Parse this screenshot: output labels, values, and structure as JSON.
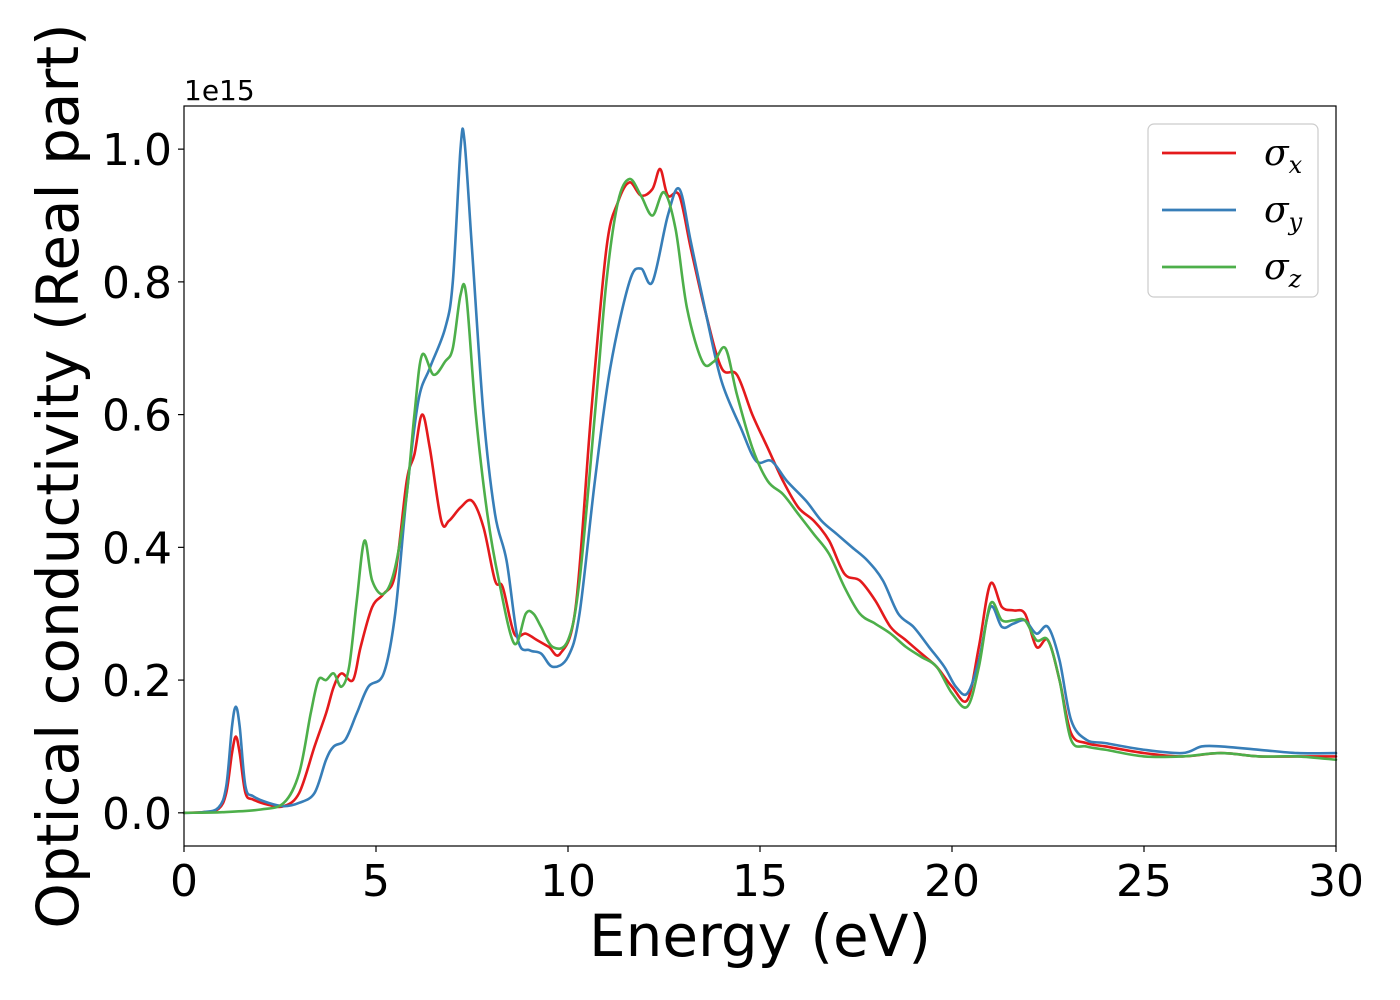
{
  "chart_data": {
    "type": "line",
    "xlabel": "Energy (eV)",
    "ylabel": "Optical conductivity (Real part)",
    "y_offset_label": "1e15",
    "y_scale": 1000000000000000.0,
    "xlim": [
      0,
      30
    ],
    "ylim": [
      -0.05,
      1.065
    ],
    "xticks": [
      0,
      5,
      10,
      15,
      20,
      25,
      30
    ],
    "xtick_labels": [
      "0",
      "5",
      "10",
      "15",
      "20",
      "25",
      "30"
    ],
    "yticks": [
      0.0,
      0.2,
      0.4,
      0.6,
      0.8,
      1.0
    ],
    "ytick_labels": [
      "0.0",
      "0.2",
      "0.4",
      "0.6",
      "0.8",
      "1.0"
    ],
    "grid": false,
    "legend_position": "top-right",
    "series": [
      {
        "name": "σx",
        "legend_base": "σ",
        "legend_sub": "x",
        "color": "#e41a1c",
        "points": [
          [
            0,
            0
          ],
          [
            0.5,
            0.001
          ],
          [
            0.9,
            0.006
          ],
          [
            1.1,
            0.03
          ],
          [
            1.25,
            0.09
          ],
          [
            1.35,
            0.115
          ],
          [
            1.45,
            0.09
          ],
          [
            1.6,
            0.03
          ],
          [
            1.8,
            0.02
          ],
          [
            2.2,
            0.012
          ],
          [
            2.6,
            0.01
          ],
          [
            3.0,
            0.03
          ],
          [
            3.4,
            0.1
          ],
          [
            3.7,
            0.15
          ],
          [
            3.9,
            0.19
          ],
          [
            4.1,
            0.21
          ],
          [
            4.4,
            0.2
          ],
          [
            4.6,
            0.25
          ],
          [
            4.9,
            0.31
          ],
          [
            5.2,
            0.33
          ],
          [
            5.5,
            0.36
          ],
          [
            5.8,
            0.5
          ],
          [
            6.0,
            0.54
          ],
          [
            6.2,
            0.6
          ],
          [
            6.4,
            0.55
          ],
          [
            6.7,
            0.44
          ],
          [
            6.9,
            0.44
          ],
          [
            7.2,
            0.46
          ],
          [
            7.5,
            0.47
          ],
          [
            7.8,
            0.43
          ],
          [
            8.1,
            0.35
          ],
          [
            8.3,
            0.34
          ],
          [
            8.6,
            0.27
          ],
          [
            8.9,
            0.27
          ],
          [
            9.2,
            0.26
          ],
          [
            9.5,
            0.25
          ],
          [
            9.8,
            0.24
          ],
          [
            10.2,
            0.31
          ],
          [
            10.6,
            0.6
          ],
          [
            11.0,
            0.85
          ],
          [
            11.3,
            0.92
          ],
          [
            11.6,
            0.95
          ],
          [
            11.9,
            0.93
          ],
          [
            12.2,
            0.94
          ],
          [
            12.4,
            0.97
          ],
          [
            12.6,
            0.93
          ],
          [
            12.9,
            0.93
          ],
          [
            13.2,
            0.85
          ],
          [
            13.6,
            0.75
          ],
          [
            14.0,
            0.67
          ],
          [
            14.4,
            0.66
          ],
          [
            14.8,
            0.6
          ],
          [
            15.2,
            0.55
          ],
          [
            15.6,
            0.5
          ],
          [
            16.0,
            0.46
          ],
          [
            16.4,
            0.44
          ],
          [
            16.8,
            0.41
          ],
          [
            17.2,
            0.36
          ],
          [
            17.6,
            0.35
          ],
          [
            18.0,
            0.32
          ],
          [
            18.4,
            0.28
          ],
          [
            18.8,
            0.26
          ],
          [
            19.2,
            0.24
          ],
          [
            19.6,
            0.22
          ],
          [
            20.0,
            0.19
          ],
          [
            20.4,
            0.17
          ],
          [
            20.7,
            0.25
          ],
          [
            21.0,
            0.345
          ],
          [
            21.3,
            0.31
          ],
          [
            21.6,
            0.305
          ],
          [
            21.9,
            0.3
          ],
          [
            22.2,
            0.25
          ],
          [
            22.5,
            0.26
          ],
          [
            22.8,
            0.2
          ],
          [
            23.1,
            0.12
          ],
          [
            23.5,
            0.105
          ],
          [
            24.0,
            0.1
          ],
          [
            25.0,
            0.09
          ],
          [
            26.0,
            0.085
          ],
          [
            27.0,
            0.09
          ],
          [
            28.0,
            0.085
          ],
          [
            29.0,
            0.085
          ],
          [
            30.0,
            0.085
          ]
        ]
      },
      {
        "name": "σy",
        "legend_base": "σ",
        "legend_sub": "y",
        "color": "#377eb8",
        "points": [
          [
            0,
            0
          ],
          [
            0.5,
            0.001
          ],
          [
            0.9,
            0.008
          ],
          [
            1.1,
            0.04
          ],
          [
            1.25,
            0.13
          ],
          [
            1.35,
            0.16
          ],
          [
            1.45,
            0.13
          ],
          [
            1.6,
            0.04
          ],
          [
            1.8,
            0.025
          ],
          [
            2.2,
            0.015
          ],
          [
            2.6,
            0.01
          ],
          [
            3.0,
            0.015
          ],
          [
            3.4,
            0.03
          ],
          [
            3.7,
            0.08
          ],
          [
            3.9,
            0.1
          ],
          [
            4.2,
            0.11
          ],
          [
            4.5,
            0.15
          ],
          [
            4.8,
            0.19
          ],
          [
            5.2,
            0.21
          ],
          [
            5.5,
            0.3
          ],
          [
            5.8,
            0.48
          ],
          [
            6.1,
            0.62
          ],
          [
            6.4,
            0.67
          ],
          [
            6.8,
            0.73
          ],
          [
            7.0,
            0.8
          ],
          [
            7.2,
            1.0
          ],
          [
            7.3,
            1.015
          ],
          [
            7.5,
            0.85
          ],
          [
            7.8,
            0.6
          ],
          [
            8.1,
            0.45
          ],
          [
            8.4,
            0.38
          ],
          [
            8.7,
            0.26
          ],
          [
            9.0,
            0.245
          ],
          [
            9.3,
            0.24
          ],
          [
            9.6,
            0.22
          ],
          [
            10.0,
            0.235
          ],
          [
            10.3,
            0.3
          ],
          [
            10.7,
            0.5
          ],
          [
            11.1,
            0.67
          ],
          [
            11.6,
            0.8
          ],
          [
            11.9,
            0.82
          ],
          [
            12.2,
            0.8
          ],
          [
            12.6,
            0.9
          ],
          [
            12.9,
            0.94
          ],
          [
            13.2,
            0.86
          ],
          [
            13.6,
            0.75
          ],
          [
            14.0,
            0.65
          ],
          [
            14.5,
            0.58
          ],
          [
            14.9,
            0.53
          ],
          [
            15.3,
            0.53
          ],
          [
            15.7,
            0.5
          ],
          [
            16.2,
            0.47
          ],
          [
            16.6,
            0.44
          ],
          [
            17.0,
            0.42
          ],
          [
            17.4,
            0.4
          ],
          [
            17.8,
            0.38
          ],
          [
            18.2,
            0.35
          ],
          [
            18.6,
            0.3
          ],
          [
            19.0,
            0.28
          ],
          [
            19.4,
            0.25
          ],
          [
            19.8,
            0.22
          ],
          [
            20.1,
            0.19
          ],
          [
            20.4,
            0.18
          ],
          [
            20.7,
            0.23
          ],
          [
            21.0,
            0.31
          ],
          [
            21.3,
            0.28
          ],
          [
            21.6,
            0.285
          ],
          [
            21.9,
            0.29
          ],
          [
            22.2,
            0.27
          ],
          [
            22.5,
            0.28
          ],
          [
            22.8,
            0.23
          ],
          [
            23.1,
            0.14
          ],
          [
            23.5,
            0.11
          ],
          [
            24.0,
            0.105
          ],
          [
            25.0,
            0.095
          ],
          [
            26.0,
            0.09
          ],
          [
            26.5,
            0.1
          ],
          [
            27.0,
            0.1
          ],
          [
            28.0,
            0.095
          ],
          [
            29.0,
            0.09
          ],
          [
            30.0,
            0.09
          ]
        ]
      },
      {
        "name": "σz",
        "legend_base": "σ",
        "legend_sub": "z",
        "color": "#4daf4a",
        "points": [
          [
            0,
            0
          ],
          [
            1.0,
            0.001
          ],
          [
            2.0,
            0.005
          ],
          [
            2.6,
            0.015
          ],
          [
            3.0,
            0.06
          ],
          [
            3.3,
            0.15
          ],
          [
            3.5,
            0.2
          ],
          [
            3.7,
            0.2
          ],
          [
            3.9,
            0.21
          ],
          [
            4.1,
            0.19
          ],
          [
            4.3,
            0.22
          ],
          [
            4.5,
            0.32
          ],
          [
            4.7,
            0.41
          ],
          [
            4.9,
            0.35
          ],
          [
            5.2,
            0.33
          ],
          [
            5.5,
            0.37
          ],
          [
            5.8,
            0.48
          ],
          [
            6.0,
            0.6
          ],
          [
            6.2,
            0.69
          ],
          [
            6.5,
            0.66
          ],
          [
            6.8,
            0.68
          ],
          [
            7.0,
            0.7
          ],
          [
            7.2,
            0.78
          ],
          [
            7.35,
            0.78
          ],
          [
            7.6,
            0.6
          ],
          [
            7.9,
            0.45
          ],
          [
            8.2,
            0.35
          ],
          [
            8.6,
            0.255
          ],
          [
            8.9,
            0.3
          ],
          [
            9.1,
            0.3
          ],
          [
            9.3,
            0.28
          ],
          [
            9.6,
            0.25
          ],
          [
            10.0,
            0.26
          ],
          [
            10.3,
            0.35
          ],
          [
            10.7,
            0.6
          ],
          [
            11.0,
            0.8
          ],
          [
            11.3,
            0.92
          ],
          [
            11.6,
            0.955
          ],
          [
            11.9,
            0.93
          ],
          [
            12.2,
            0.9
          ],
          [
            12.5,
            0.935
          ],
          [
            12.8,
            0.88
          ],
          [
            13.1,
            0.76
          ],
          [
            13.5,
            0.68
          ],
          [
            13.8,
            0.68
          ],
          [
            14.1,
            0.7
          ],
          [
            14.4,
            0.63
          ],
          [
            14.8,
            0.55
          ],
          [
            15.2,
            0.5
          ],
          [
            15.6,
            0.48
          ],
          [
            16.0,
            0.45
          ],
          [
            16.4,
            0.42
          ],
          [
            16.8,
            0.39
          ],
          [
            17.2,
            0.34
          ],
          [
            17.6,
            0.3
          ],
          [
            18.0,
            0.285
          ],
          [
            18.4,
            0.27
          ],
          [
            18.8,
            0.25
          ],
          [
            19.2,
            0.235
          ],
          [
            19.6,
            0.22
          ],
          [
            20.0,
            0.18
          ],
          [
            20.4,
            0.16
          ],
          [
            20.7,
            0.22
          ],
          [
            21.0,
            0.315
          ],
          [
            21.3,
            0.29
          ],
          [
            21.6,
            0.29
          ],
          [
            21.9,
            0.29
          ],
          [
            22.2,
            0.26
          ],
          [
            22.5,
            0.26
          ],
          [
            22.8,
            0.2
          ],
          [
            23.1,
            0.11
          ],
          [
            23.5,
            0.1
          ],
          [
            24.0,
            0.095
          ],
          [
            25.0,
            0.085
          ],
          [
            26.0,
            0.085
          ],
          [
            27.0,
            0.09
          ],
          [
            28.0,
            0.085
          ],
          [
            29.0,
            0.085
          ],
          [
            30.0,
            0.08
          ]
        ]
      }
    ]
  }
}
